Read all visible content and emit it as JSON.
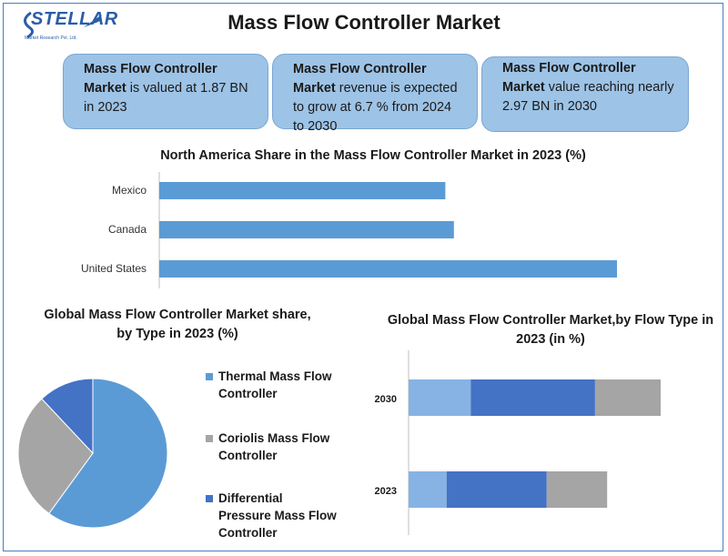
{
  "header": {
    "logo_text": "STELLAR",
    "logo_sub": "Market Research Pvt. Ltd.",
    "title": "Mass Flow Controller Market"
  },
  "cards": [
    {
      "bold": "Mass Flow Controller Market",
      "text": " is valued at 1.87 BN in 2023"
    },
    {
      "bold": "Mass Flow Controller Market",
      "text": " revenue is expected to grow at 6.7 % from 2024 to 2030"
    },
    {
      "bold": "Mass Flow Controller Market",
      "text": " value reaching nearly 2.97 BN in 2030"
    }
  ],
  "chart_data": [
    {
      "type": "bar",
      "orientation": "horizontal",
      "title": "North America Share in the Mass Flow Controller Market in 2023 (%)",
      "categories": [
        "Mexico",
        "Canada",
        "United States"
      ],
      "values": [
        50,
        51.5,
        80
      ],
      "xlim": [
        0,
        100
      ],
      "color": "#5b9bd5",
      "grid": false
    },
    {
      "type": "pie",
      "title": "Global Mass Flow Controller Market share, by Type in 2023  (%)",
      "labels": [
        "Thermal Mass Flow Controller",
        "Coriolis Mass Flow Controller",
        "Differential Pressure Mass Flow Controller"
      ],
      "values": [
        60,
        28,
        12
      ],
      "colors": [
        "#5b9bd5",
        "#a5a5a5",
        "#4472c4"
      ],
      "legend": "right"
    },
    {
      "type": "bar",
      "orientation": "horizontal",
      "stacked": true,
      "title": "Global Mass Flow Controller Market,by Flow Type in 2023 (in %)",
      "categories": [
        "2030",
        "2023"
      ],
      "series": [
        {
          "values": [
            18,
            11
          ],
          "color": "#86b3e3"
        },
        {
          "values": [
            36,
            29
          ],
          "color": "#4472c4"
        },
        {
          "values": [
            19,
            17.5
          ],
          "color": "#a5a5a5"
        }
      ],
      "xlim": [
        0,
        100
      ],
      "grid": false
    }
  ]
}
